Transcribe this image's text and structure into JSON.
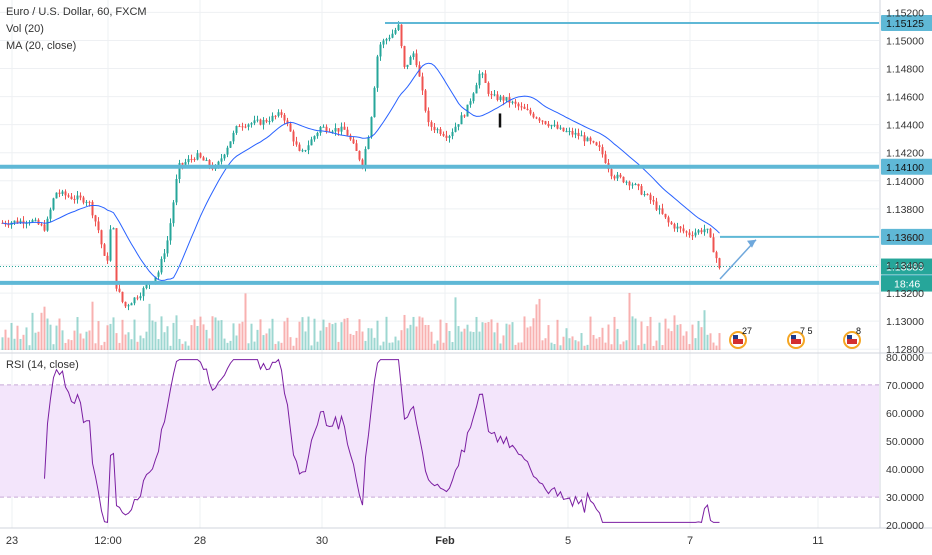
{
  "chart_legend": {
    "title": "Euro / U.S. Dollar, 60, FXCM",
    "vol": "Vol (20)",
    "ma": "MA (20, close)",
    "rsi": "RSI (14, close)"
  },
  "colors": {
    "bull": "#26a69a",
    "bear": "#ef5350",
    "ma": "#2962ff",
    "rsi": "#7b1fa2",
    "level": "#5fb8d6",
    "rsi_band": "#f3e5fb"
  },
  "chart_data": [
    {
      "type": "candlestick",
      "title": "Euro / U.S. Dollar, 60, FXCM",
      "x_tick_labels": [
        "23",
        "12:00",
        "28",
        "30",
        "Feb",
        "5",
        "7",
        "11"
      ],
      "y_tick_labels": [
        "1.15200",
        "1.15000",
        "1.14800",
        "1.14600",
        "1.14400",
        "1.14200",
        "1.14000",
        "1.13800",
        "1.13600",
        "1.13400",
        "1.13200",
        "1.13000",
        "1.12800"
      ],
      "ylim": [
        1.1278,
        1.1526
      ],
      "horizontal_levels": [
        {
          "label": "1.15125",
          "value": 1.15125
        },
        {
          "label": "1.14100",
          "value": 1.141
        },
        {
          "label": "1.13600",
          "value": 1.136
        },
        {
          "label": "1.13273",
          "value": 1.13273
        }
      ],
      "last_price": {
        "label": "1.13389",
        "value": 1.13389
      },
      "countdown": "18:46",
      "series": [
        {
          "name": "MA (20, close)"
        },
        {
          "name": "Vol (20)"
        }
      ],
      "events": [
        "27",
        "7 5",
        "8"
      ]
    },
    {
      "type": "line",
      "title": "RSI (14, close)",
      "y_tick_labels": [
        "80.0000",
        "70.0000",
        "60.0000",
        "50.0000",
        "40.0000",
        "30.0000",
        "20.0000"
      ],
      "ylim": [
        19,
        81
      ],
      "band": [
        30,
        70
      ]
    }
  ]
}
